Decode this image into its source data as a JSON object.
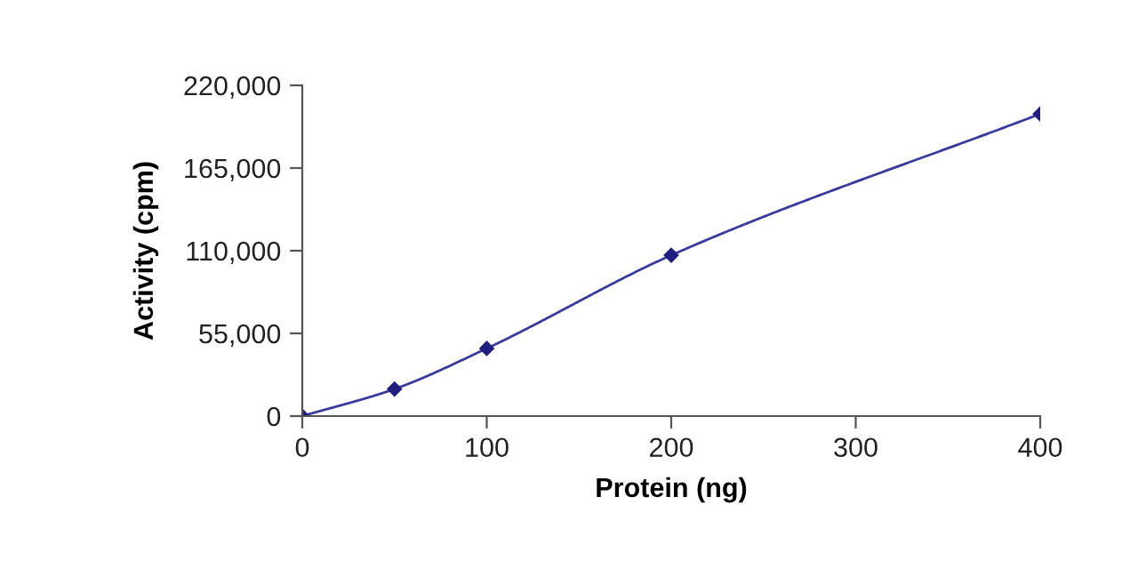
{
  "chart_data": {
    "type": "line",
    "xlabel": "Protein (ng)",
    "ylabel": "Activity (cpm)",
    "x": [
      0,
      50,
      100,
      200,
      400
    ],
    "series": [
      {
        "color": "#3a3a9c",
        "values": [
          0,
          18000,
          45000,
          107000,
          201000
        ]
      }
    ],
    "xlim": [
      0,
      400
    ],
    "xticks": [
      0,
      100,
      200,
      300,
      400
    ],
    "ylim": [
      0,
      220000
    ],
    "yticks": [
      0,
      {
        "value": 55000,
        "label": "55,000"
      },
      {
        "value": 110000,
        "label": "110,000"
      },
      {
        "value": 165000,
        "label": "165,000"
      },
      {
        "value": 220000,
        "label": "220,000"
      }
    ],
    "marker": "diamond",
    "line_style": "solid",
    "grid": false,
    "legend": false
  }
}
